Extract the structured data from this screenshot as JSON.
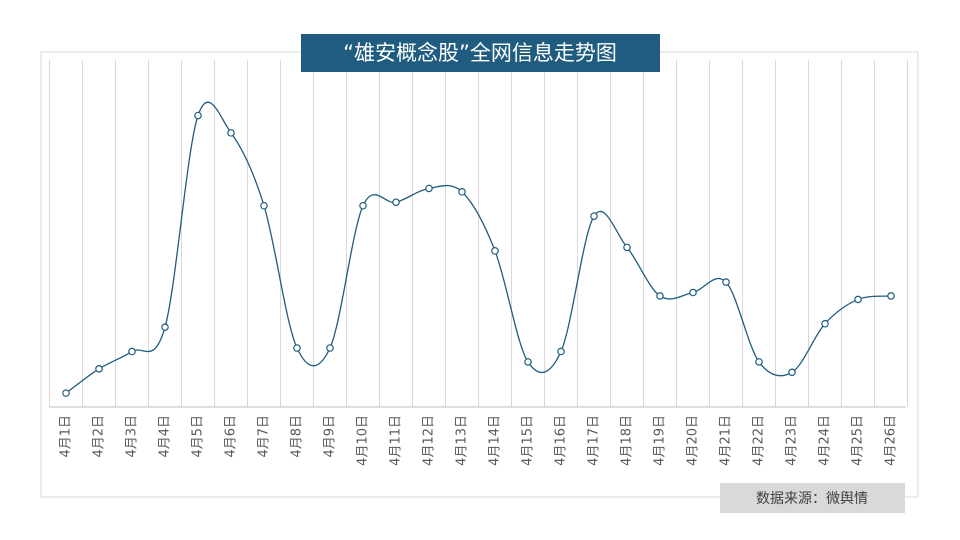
{
  "chart_data": {
    "type": "line",
    "title": "“雄安概念股”全网信息走势图",
    "source": "数据来源：微舆情",
    "categories": [
      "4月1日",
      "4月2日",
      "4月3日",
      "4月4日",
      "4月5日",
      "4月6日",
      "4月7日",
      "4月8日",
      "4月9日",
      "4月10日",
      "4月11日",
      "4月12日",
      "4月13日",
      "4月14日",
      "4月15日",
      "4月16日",
      "4月17日",
      "4月18日",
      "4月19日",
      "4月20日",
      "4月21日",
      "4月22日",
      "4月23日",
      "4月24日",
      "4月25日",
      "4月26日"
    ],
    "values": [
      4,
      11,
      16,
      23,
      84,
      79,
      58,
      17,
      17,
      58,
      59,
      63,
      62,
      45,
      13,
      16,
      55,
      46,
      32,
      33,
      36,
      13,
      10,
      24,
      31,
      32
    ],
    "color": "#1f5c80",
    "ylim": [
      0,
      100
    ]
  }
}
